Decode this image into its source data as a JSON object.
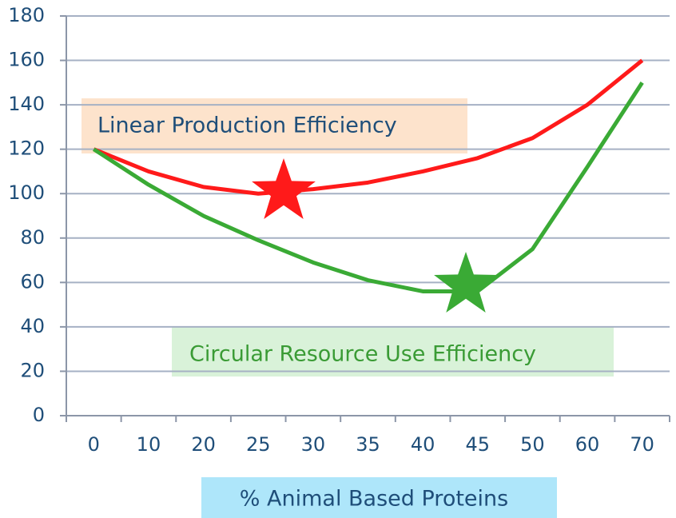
{
  "chart_data": {
    "type": "line",
    "x_label": "% Animal Based Proteins",
    "categories": [
      "0",
      "10",
      "20",
      "25",
      "30",
      "35",
      "40",
      "45",
      "50",
      "60",
      "70"
    ],
    "series": [
      {
        "name": "Linear Production Efficiency",
        "color": "#ff1a1a",
        "values": [
          120,
          110,
          103,
          100,
          102,
          105,
          110,
          116,
          125,
          140,
          160
        ]
      },
      {
        "name": "Circular Resource Use Efficiency",
        "color": "#3aaa35",
        "values": [
          120,
          104,
          90,
          79,
          69,
          61,
          56,
          56,
          75,
          112,
          150
        ]
      }
    ],
    "ylim": [
      0,
      180
    ],
    "yticks": [
      0,
      20,
      40,
      60,
      80,
      100,
      120,
      140,
      160,
      180
    ],
    "grid": true
  }
}
